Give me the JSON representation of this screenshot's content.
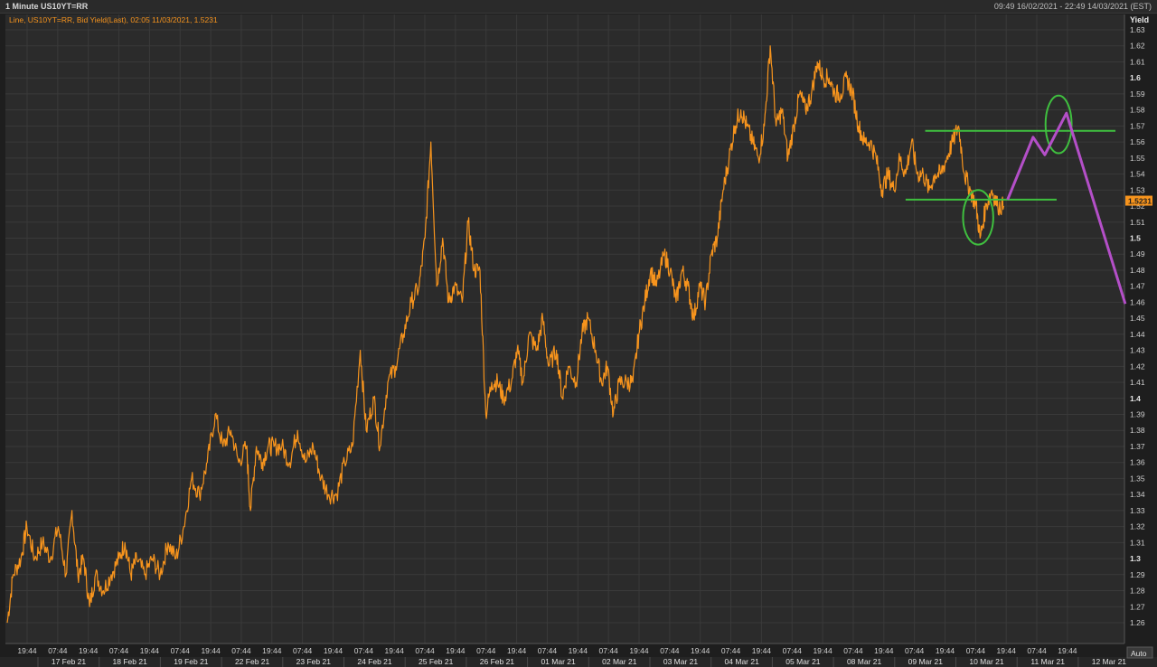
{
  "window": {
    "title": "1 Minute US10YT=RR",
    "range": "09:49 16/02/2021 - 22:49 14/03/2021 (EST)"
  },
  "colors": {
    "background": "#2b2b2b",
    "grid": "#3a3a3a",
    "series": "#f7941d",
    "projection": "#b44fc8",
    "levels": "#3fbf3f",
    "last_badge": "#f7941d"
  },
  "chart_data": {
    "type": "line",
    "legend": "Line, US10YT=RR, Bid Yield(Last), 02:05 11/03/2021, 1.5231",
    "ylabel": "Yield",
    "ylim": [
      1.25,
      1.63
    ],
    "yticks": [
      1.26,
      1.27,
      1.28,
      1.29,
      1.3,
      1.31,
      1.32,
      1.33,
      1.34,
      1.35,
      1.36,
      1.37,
      1.38,
      1.39,
      1.4,
      1.41,
      1.42,
      1.43,
      1.44,
      1.45,
      1.46,
      1.47,
      1.48,
      1.49,
      1.5,
      1.51,
      1.52,
      1.53,
      1.54,
      1.55,
      1.56,
      1.57,
      1.58,
      1.59,
      1.6,
      1.61,
      1.62,
      1.63
    ],
    "bold_yticks": [
      1.3,
      1.4,
      1.5,
      1.6
    ],
    "last_value": "1.5231",
    "auto_label": "Auto",
    "x_time_ticks": [
      "19:44",
      "07:44",
      "19:44",
      "07:44",
      "19:44",
      "07:44",
      "19:44",
      "07:44",
      "19:44",
      "07:44",
      "19:44",
      "07:44",
      "19:44",
      "07:44",
      "19:44",
      "07:44",
      "19:44",
      "07:44",
      "19:44",
      "07:44",
      "19:44",
      "07:44",
      "19:44",
      "07:44",
      "19:44",
      "07:44",
      "19:44",
      "07:44",
      "19:44",
      "07:44",
      "19:44",
      "07:44",
      "19:44",
      "07:44",
      "19:44"
    ],
    "x_dates": [
      "17 Feb 21",
      "18 Feb 21",
      "19 Feb 21",
      "22 Feb 21",
      "23 Feb 21",
      "24 Feb 21",
      "25 Feb 21",
      "26 Feb 21",
      "01 Mar 21",
      "02 Mar 21",
      "03 Mar 21",
      "04 Mar 21",
      "05 Mar 21",
      "08 Mar 21",
      "09 Mar 21",
      "10 Mar 21",
      "11 Mar 21",
      "12 Mar 21"
    ],
    "x_session_index": [
      0,
      1,
      2,
      3,
      4,
      5,
      6,
      7,
      8,
      9,
      10,
      11,
      12,
      13,
      14,
      15,
      16,
      17,
      18,
      19,
      20,
      21,
      22,
      23,
      24,
      25,
      26,
      27,
      28,
      29,
      30,
      31,
      32,
      33,
      34,
      35,
      36,
      37,
      38,
      39,
      40,
      41,
      42,
      43,
      44,
      45,
      46,
      47,
      48,
      49,
      50,
      51,
      52,
      53,
      54,
      55,
      56,
      57,
      58,
      59,
      60,
      61,
      62,
      63,
      64,
      65,
      66,
      67,
      68,
      69
    ],
    "series": [
      {
        "name": "US10YT=RR",
        "points": [
          [
            0.0,
            1.26
          ],
          [
            0.3,
            1.29
          ],
          [
            0.7,
            1.3
          ],
          [
            1.0,
            1.32
          ],
          [
            1.4,
            1.3
          ],
          [
            1.8,
            1.31
          ],
          [
            2.2,
            1.3
          ],
          [
            2.6,
            1.32
          ],
          [
            3.0,
            1.29
          ],
          [
            3.3,
            1.33
          ],
          [
            3.6,
            1.29
          ],
          [
            3.9,
            1.3
          ],
          [
            4.2,
            1.27
          ],
          [
            4.5,
            1.29
          ],
          [
            4.9,
            1.28
          ],
          [
            5.3,
            1.29
          ],
          [
            5.7,
            1.3
          ],
          [
            6.0,
            1.31
          ],
          [
            6.3,
            1.29
          ],
          [
            6.6,
            1.3
          ],
          [
            7.0,
            1.29
          ],
          [
            7.4,
            1.3
          ],
          [
            7.8,
            1.29
          ],
          [
            8.2,
            1.31
          ],
          [
            8.6,
            1.3
          ],
          [
            9.0,
            1.32
          ],
          [
            9.4,
            1.35
          ],
          [
            9.8,
            1.34
          ],
          [
            10.2,
            1.36
          ],
          [
            10.6,
            1.39
          ],
          [
            11.0,
            1.37
          ],
          [
            11.4,
            1.38
          ],
          [
            11.8,
            1.36
          ],
          [
            12.2,
            1.37
          ],
          [
            12.4,
            1.33
          ],
          [
            12.7,
            1.37
          ],
          [
            13.0,
            1.36
          ],
          [
            13.3,
            1.37
          ],
          [
            13.6,
            1.37
          ],
          [
            14.0,
            1.37
          ],
          [
            14.4,
            1.36
          ],
          [
            14.8,
            1.38
          ],
          [
            15.2,
            1.36
          ],
          [
            15.6,
            1.37
          ],
          [
            16.0,
            1.35
          ],
          [
            16.4,
            1.34
          ],
          [
            16.8,
            1.34
          ],
          [
            17.2,
            1.36
          ],
          [
            17.6,
            1.37
          ],
          [
            18.0,
            1.43
          ],
          [
            18.3,
            1.38
          ],
          [
            18.7,
            1.4
          ],
          [
            19.0,
            1.37
          ],
          [
            19.4,
            1.41
          ],
          [
            19.8,
            1.42
          ],
          [
            20.2,
            1.44
          ],
          [
            20.6,
            1.46
          ],
          [
            21.0,
            1.47
          ],
          [
            21.3,
            1.5
          ],
          [
            21.6,
            1.56
          ],
          [
            21.9,
            1.47
          ],
          [
            22.2,
            1.5
          ],
          [
            22.5,
            1.46
          ],
          [
            22.8,
            1.47
          ],
          [
            23.2,
            1.46
          ],
          [
            23.5,
            1.51
          ],
          [
            23.8,
            1.48
          ],
          [
            24.1,
            1.48
          ],
          [
            24.4,
            1.39
          ],
          [
            24.7,
            1.41
          ],
          [
            25.0,
            1.41
          ],
          [
            25.3,
            1.4
          ],
          [
            25.7,
            1.41
          ],
          [
            26.0,
            1.43
          ],
          [
            26.3,
            1.41
          ],
          [
            26.6,
            1.44
          ],
          [
            27.0,
            1.43
          ],
          [
            27.3,
            1.45
          ],
          [
            27.6,
            1.42
          ],
          [
            28.0,
            1.43
          ],
          [
            28.3,
            1.4
          ],
          [
            28.6,
            1.42
          ],
          [
            29.0,
            1.41
          ],
          [
            29.3,
            1.44
          ],
          [
            29.6,
            1.45
          ],
          [
            30.0,
            1.43
          ],
          [
            30.3,
            1.41
          ],
          [
            30.6,
            1.42
          ],
          [
            30.9,
            1.39
          ],
          [
            31.2,
            1.41
          ],
          [
            31.6,
            1.41
          ],
          [
            31.9,
            1.41
          ],
          [
            32.2,
            1.44
          ],
          [
            32.5,
            1.46
          ],
          [
            32.8,
            1.48
          ],
          [
            33.1,
            1.47
          ],
          [
            33.5,
            1.49
          ],
          [
            33.8,
            1.48
          ],
          [
            34.1,
            1.46
          ],
          [
            34.4,
            1.48
          ],
          [
            34.7,
            1.47
          ],
          [
            35.0,
            1.45
          ],
          [
            35.3,
            1.47
          ],
          [
            35.6,
            1.46
          ],
          [
            35.9,
            1.49
          ],
          [
            36.2,
            1.5
          ],
          [
            36.5,
            1.53
          ],
          [
            36.8,
            1.55
          ],
          [
            37.1,
            1.57
          ],
          [
            37.4,
            1.58
          ],
          [
            37.7,
            1.57
          ],
          [
            38.0,
            1.56
          ],
          [
            38.3,
            1.55
          ],
          [
            38.6,
            1.57
          ],
          [
            38.9,
            1.62
          ],
          [
            39.2,
            1.57
          ],
          [
            39.5,
            1.58
          ],
          [
            39.8,
            1.55
          ],
          [
            40.1,
            1.57
          ],
          [
            40.4,
            1.59
          ],
          [
            40.7,
            1.58
          ],
          [
            41.0,
            1.59
          ],
          [
            41.3,
            1.61
          ],
          [
            41.6,
            1.6
          ],
          [
            41.9,
            1.6
          ],
          [
            42.2,
            1.59
          ],
          [
            42.5,
            1.59
          ],
          [
            42.8,
            1.6
          ],
          [
            43.1,
            1.59
          ],
          [
            43.4,
            1.57
          ],
          [
            43.7,
            1.56
          ],
          [
            44.0,
            1.56
          ],
          [
            44.3,
            1.55
          ],
          [
            44.6,
            1.53
          ],
          [
            44.9,
            1.54
          ],
          [
            45.2,
            1.53
          ],
          [
            45.5,
            1.55
          ],
          [
            45.8,
            1.54
          ],
          [
            46.1,
            1.56
          ],
          [
            46.4,
            1.54
          ],
          [
            46.7,
            1.54
          ],
          [
            47.0,
            1.53
          ],
          [
            47.3,
            1.54
          ],
          [
            47.6,
            1.54
          ],
          [
            47.9,
            1.55
          ],
          [
            48.2,
            1.56
          ],
          [
            48.5,
            1.57
          ],
          [
            48.8,
            1.54
          ],
          [
            49.1,
            1.53
          ],
          [
            49.4,
            1.52
          ],
          [
            49.6,
            1.5
          ],
          [
            49.9,
            1.52
          ],
          [
            50.2,
            1.53
          ],
          [
            50.5,
            1.52
          ],
          [
            50.8,
            1.52
          ]
        ]
      }
    ],
    "annotations": {
      "resistance": {
        "y": 1.567,
        "x_from": 46.8,
        "x_to": 56.5
      },
      "support": {
        "y": 1.524,
        "x_from": 45.8,
        "x_to": 53.5
      },
      "circles": [
        {
          "x": 49.5,
          "y": 1.513,
          "rx": 1.1,
          "ry": 0.017
        },
        {
          "x": 53.6,
          "y": 1.571,
          "rx": 0.95,
          "ry": 0.018
        }
      ],
      "projection": [
        [
          51.0,
          1.524
        ],
        [
          52.3,
          1.563
        ],
        [
          52.9,
          1.552
        ],
        [
          54.0,
          1.578
        ],
        [
          57.0,
          1.459
        ]
      ]
    }
  }
}
